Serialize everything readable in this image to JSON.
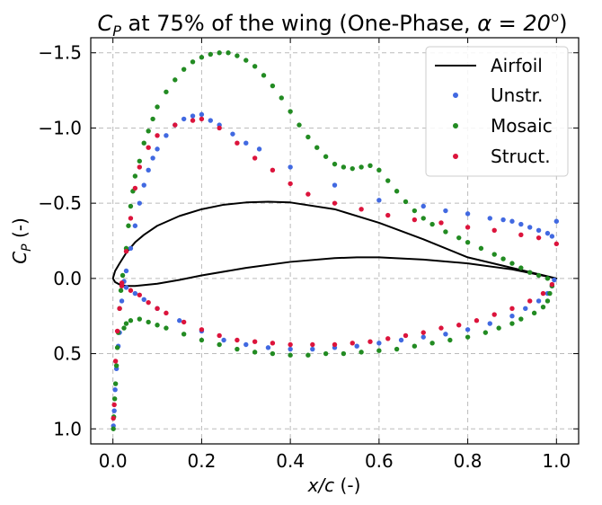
{
  "chart_data": {
    "type": "scatter",
    "title_main": "C",
    "title_sub": "P",
    "title_rest": " at 75% of the wing (One-Phase, ",
    "title_alpha": "α = 20",
    "title_sup": "o",
    "title_end": ")",
    "xlabel_var": "x/c",
    "xlabel_unit": " (-)",
    "ylabel_var": "C",
    "ylabel_sub": "P",
    "ylabel_unit": " (-)",
    "xlim": [
      -0.05,
      1.05
    ],
    "ylim": [
      1.1,
      -1.6
    ],
    "y_inverted": true,
    "xticks": [
      0.0,
      0.2,
      0.4,
      0.6,
      0.8,
      1.0
    ],
    "xtick_labels": [
      "0.0",
      "0.2",
      "0.4",
      "0.6",
      "0.8",
      "1.0"
    ],
    "yticks": [
      -1.5,
      -1.0,
      -0.5,
      0.0,
      0.5,
      1.0
    ],
    "ytick_labels": [
      "−1.5",
      "−1.0",
      "−0.5",
      "0.0",
      "0.5",
      "1.0"
    ],
    "grid": true,
    "legend_position": "top-right",
    "colors": {
      "airfoil": "#000000",
      "unstr": "#4169e1",
      "mosaic": "#228b22",
      "struct": "#dc143c"
    },
    "airfoil": {
      "name": "Airfoil",
      "upper": [
        [
          1.0,
          0.0
        ],
        [
          0.95,
          -0.035
        ],
        [
          0.9,
          -0.07
        ],
        [
          0.8,
          -0.14
        ],
        [
          0.7,
          -0.26
        ],
        [
          0.6,
          -0.37
        ],
        [
          0.5,
          -0.46
        ],
        [
          0.4,
          -0.505
        ],
        [
          0.35,
          -0.51
        ],
        [
          0.3,
          -0.505
        ],
        [
          0.25,
          -0.49
        ],
        [
          0.2,
          -0.46
        ],
        [
          0.15,
          -0.415
        ],
        [
          0.1,
          -0.35
        ],
        [
          0.07,
          -0.29
        ],
        [
          0.05,
          -0.24
        ],
        [
          0.03,
          -0.17
        ],
        [
          0.015,
          -0.1
        ],
        [
          0.005,
          -0.05
        ],
        [
          0.0,
          0.0
        ]
      ],
      "lower": [
        [
          0.0,
          0.0
        ],
        [
          0.005,
          0.025
        ],
        [
          0.015,
          0.04
        ],
        [
          0.03,
          0.05
        ],
        [
          0.05,
          0.05
        ],
        [
          0.1,
          0.035
        ],
        [
          0.15,
          0.01
        ],
        [
          0.2,
          -0.02
        ],
        [
          0.3,
          -0.07
        ],
        [
          0.4,
          -0.11
        ],
        [
          0.5,
          -0.135
        ],
        [
          0.55,
          -0.14
        ],
        [
          0.6,
          -0.14
        ],
        [
          0.7,
          -0.125
        ],
        [
          0.8,
          -0.1
        ],
        [
          0.9,
          -0.06
        ],
        [
          0.95,
          -0.03
        ],
        [
          1.0,
          0.0
        ]
      ]
    },
    "series": [
      {
        "name": "Unstr.",
        "points": [
          [
            0.001,
            0.98
          ],
          [
            0.003,
            0.88
          ],
          [
            0.005,
            0.74
          ],
          [
            0.008,
            0.6
          ],
          [
            0.012,
            0.45
          ],
          [
            0.015,
            0.36
          ],
          [
            0.02,
            0.15
          ],
          [
            0.025,
            0.02
          ],
          [
            0.03,
            -0.05
          ],
          [
            0.04,
            -0.2
          ],
          [
            0.05,
            -0.35
          ],
          [
            0.06,
            -0.5
          ],
          [
            0.07,
            -0.62
          ],
          [
            0.08,
            -0.72
          ],
          [
            0.09,
            -0.8
          ],
          [
            0.1,
            -0.86
          ],
          [
            0.12,
            -0.95
          ],
          [
            0.14,
            -1.02
          ],
          [
            0.16,
            -1.06
          ],
          [
            0.18,
            -1.08
          ],
          [
            0.2,
            -1.09
          ],
          [
            0.22,
            -1.05
          ],
          [
            0.24,
            -1.02
          ],
          [
            0.27,
            -0.96
          ],
          [
            0.3,
            -0.9
          ],
          [
            0.33,
            -0.86
          ],
          [
            0.4,
            -0.74
          ],
          [
            0.5,
            -0.62
          ],
          [
            0.6,
            -0.52
          ],
          [
            0.7,
            -0.48
          ],
          [
            0.75,
            -0.45
          ],
          [
            0.8,
            -0.43
          ],
          [
            0.85,
            -0.4
          ],
          [
            0.88,
            -0.39
          ],
          [
            0.9,
            -0.38
          ],
          [
            0.92,
            -0.36
          ],
          [
            0.94,
            -0.34
          ],
          [
            0.96,
            -0.32
          ],
          [
            0.98,
            -0.3
          ],
          [
            0.99,
            -0.28
          ],
          [
            1.0,
            -0.38
          ],
          [
            0.995,
            0.01
          ],
          [
            0.99,
            0.05
          ],
          [
            0.98,
            0.1
          ],
          [
            0.96,
            0.15
          ],
          [
            0.93,
            0.2
          ],
          [
            0.9,
            0.25
          ],
          [
            0.85,
            0.3
          ],
          [
            0.8,
            0.34
          ],
          [
            0.75,
            0.37
          ],
          [
            0.7,
            0.39
          ],
          [
            0.65,
            0.41
          ],
          [
            0.6,
            0.43
          ],
          [
            0.55,
            0.45
          ],
          [
            0.5,
            0.46
          ],
          [
            0.45,
            0.47
          ],
          [
            0.4,
            0.47
          ],
          [
            0.35,
            0.46
          ],
          [
            0.3,
            0.44
          ],
          [
            0.25,
            0.41
          ],
          [
            0.2,
            0.35
          ],
          [
            0.15,
            0.28
          ],
          [
            0.1,
            0.2
          ],
          [
            0.07,
            0.14
          ],
          [
            0.05,
            0.1
          ],
          [
            0.03,
            0.06
          ]
        ]
      },
      {
        "name": "Mosaic",
        "points": [
          [
            0.001,
            1.0
          ],
          [
            0.002,
            0.92
          ],
          [
            0.004,
            0.8
          ],
          [
            0.006,
            0.7
          ],
          [
            0.008,
            0.58
          ],
          [
            0.01,
            0.46
          ],
          [
            0.012,
            0.36
          ],
          [
            0.015,
            0.2
          ],
          [
            0.018,
            0.08
          ],
          [
            0.022,
            -0.02
          ],
          [
            0.03,
            -0.2
          ],
          [
            0.035,
            -0.35
          ],
          [
            0.04,
            -0.48
          ],
          [
            0.045,
            -0.58
          ],
          [
            0.05,
            -0.68
          ],
          [
            0.06,
            -0.78
          ],
          [
            0.07,
            -0.9
          ],
          [
            0.08,
            -0.98
          ],
          [
            0.09,
            -1.06
          ],
          [
            0.1,
            -1.14
          ],
          [
            0.12,
            -1.24
          ],
          [
            0.14,
            -1.32
          ],
          [
            0.16,
            -1.39
          ],
          [
            0.18,
            -1.44
          ],
          [
            0.2,
            -1.47
          ],
          [
            0.22,
            -1.49
          ],
          [
            0.24,
            -1.5
          ],
          [
            0.26,
            -1.5
          ],
          [
            0.28,
            -1.48
          ],
          [
            0.3,
            -1.45
          ],
          [
            0.32,
            -1.41
          ],
          [
            0.34,
            -1.35
          ],
          [
            0.36,
            -1.28
          ],
          [
            0.38,
            -1.2
          ],
          [
            0.4,
            -1.11
          ],
          [
            0.42,
            -1.02
          ],
          [
            0.44,
            -0.94
          ],
          [
            0.46,
            -0.87
          ],
          [
            0.48,
            -0.81
          ],
          [
            0.5,
            -0.76
          ],
          [
            0.52,
            -0.74
          ],
          [
            0.54,
            -0.73
          ],
          [
            0.56,
            -0.74
          ],
          [
            0.58,
            -0.75
          ],
          [
            0.6,
            -0.72
          ],
          [
            0.62,
            -0.65
          ],
          [
            0.64,
            -0.58
          ],
          [
            0.66,
            -0.51
          ],
          [
            0.68,
            -0.45
          ],
          [
            0.7,
            -0.4
          ],
          [
            0.72,
            -0.36
          ],
          [
            0.75,
            -0.31
          ],
          [
            0.78,
            -0.27
          ],
          [
            0.8,
            -0.24
          ],
          [
            0.83,
            -0.2
          ],
          [
            0.86,
            -0.16
          ],
          [
            0.88,
            -0.13
          ],
          [
            0.9,
            -0.1
          ],
          [
            0.92,
            -0.07
          ],
          [
            0.94,
            -0.04
          ],
          [
            0.96,
            -0.02
          ],
          [
            0.98,
            0.0
          ],
          [
            0.99,
            0.05
          ],
          [
            0.985,
            0.1
          ],
          [
            0.98,
            0.15
          ],
          [
            0.97,
            0.19
          ],
          [
            0.95,
            0.23
          ],
          [
            0.92,
            0.27
          ],
          [
            0.9,
            0.3
          ],
          [
            0.87,
            0.33
          ],
          [
            0.84,
            0.36
          ],
          [
            0.8,
            0.39
          ],
          [
            0.76,
            0.41
          ],
          [
            0.72,
            0.43
          ],
          [
            0.68,
            0.45
          ],
          [
            0.64,
            0.47
          ],
          [
            0.6,
            0.48
          ],
          [
            0.56,
            0.49
          ],
          [
            0.52,
            0.5
          ],
          [
            0.48,
            0.5
          ],
          [
            0.44,
            0.51
          ],
          [
            0.4,
            0.51
          ],
          [
            0.36,
            0.5
          ],
          [
            0.32,
            0.49
          ],
          [
            0.28,
            0.47
          ],
          [
            0.24,
            0.44
          ],
          [
            0.2,
            0.41
          ],
          [
            0.16,
            0.37
          ],
          [
            0.12,
            0.33
          ],
          [
            0.1,
            0.31
          ],
          [
            0.08,
            0.29
          ],
          [
            0.06,
            0.27
          ],
          [
            0.04,
            0.28
          ],
          [
            0.03,
            0.3
          ],
          [
            0.025,
            0.33
          ]
        ]
      },
      {
        "name": "Struct.",
        "points": [
          [
            0.001,
            0.93
          ],
          [
            0.003,
            0.84
          ],
          [
            0.006,
            0.55
          ],
          [
            0.01,
            0.35
          ],
          [
            0.015,
            0.2
          ],
          [
            0.02,
            0.05
          ],
          [
            0.03,
            -0.18
          ],
          [
            0.04,
            -0.4
          ],
          [
            0.05,
            -0.6
          ],
          [
            0.06,
            -0.74
          ],
          [
            0.08,
            -0.87
          ],
          [
            0.1,
            -0.95
          ],
          [
            0.14,
            -1.02
          ],
          [
            0.18,
            -1.05
          ],
          [
            0.2,
            -1.06
          ],
          [
            0.24,
            -1.0
          ],
          [
            0.28,
            -0.9
          ],
          [
            0.32,
            -0.8
          ],
          [
            0.36,
            -0.72
          ],
          [
            0.4,
            -0.63
          ],
          [
            0.44,
            -0.56
          ],
          [
            0.5,
            -0.5
          ],
          [
            0.56,
            -0.46
          ],
          [
            0.62,
            -0.42
          ],
          [
            0.68,
            -0.39
          ],
          [
            0.74,
            -0.37
          ],
          [
            0.8,
            -0.34
          ],
          [
            0.86,
            -0.32
          ],
          [
            0.92,
            -0.29
          ],
          [
            0.96,
            -0.27
          ],
          [
            1.0,
            -0.23
          ],
          [
            0.99,
            0.04
          ],
          [
            0.97,
            0.1
          ],
          [
            0.94,
            0.15
          ],
          [
            0.9,
            0.2
          ],
          [
            0.86,
            0.24
          ],
          [
            0.82,
            0.28
          ],
          [
            0.78,
            0.31
          ],
          [
            0.74,
            0.33
          ],
          [
            0.7,
            0.36
          ],
          [
            0.66,
            0.38
          ],
          [
            0.62,
            0.4
          ],
          [
            0.58,
            0.42
          ],
          [
            0.54,
            0.43
          ],
          [
            0.5,
            0.44
          ],
          [
            0.45,
            0.44
          ],
          [
            0.4,
            0.44
          ],
          [
            0.36,
            0.43
          ],
          [
            0.32,
            0.42
          ],
          [
            0.28,
            0.41
          ],
          [
            0.24,
            0.38
          ],
          [
            0.2,
            0.34
          ],
          [
            0.16,
            0.29
          ],
          [
            0.12,
            0.23
          ],
          [
            0.1,
            0.2
          ],
          [
            0.08,
            0.16
          ],
          [
            0.06,
            0.11
          ],
          [
            0.04,
            0.08
          ],
          [
            0.02,
            0.03
          ]
        ]
      }
    ]
  }
}
